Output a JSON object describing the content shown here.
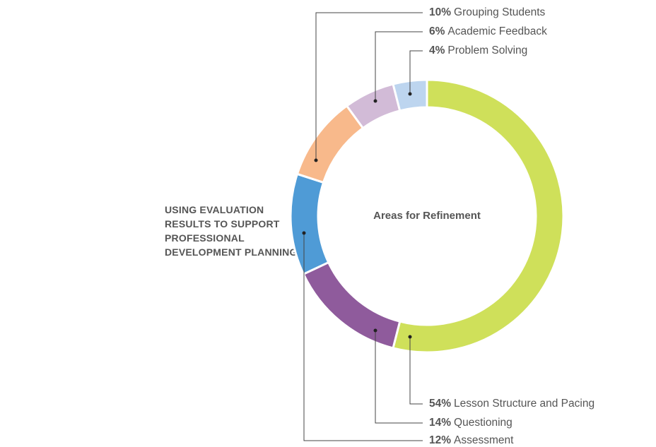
{
  "chart_data": {
    "type": "donut",
    "title": "USING EVALUATION RESULTS TO SUPPORT PROFESSIONAL DEVELOPMENT PLANNING",
    "center_label": "Areas for Refinement",
    "categories": [
      "Lesson Structure and Pacing",
      "Questioning",
      "Assessment",
      "Grouping Students",
      "Academic Feedback",
      "Problem Solving"
    ],
    "values": [
      54,
      14,
      12,
      10,
      6,
      4
    ],
    "value_labels": [
      "54%",
      "14%",
      "12%",
      "10%",
      "6%",
      "4%"
    ],
    "colors": [
      "#cfe05a",
      "#8f5b9c",
      "#4f9bd6",
      "#f8b98b",
      "#d2bbd7",
      "#bdd5ef"
    ]
  }
}
